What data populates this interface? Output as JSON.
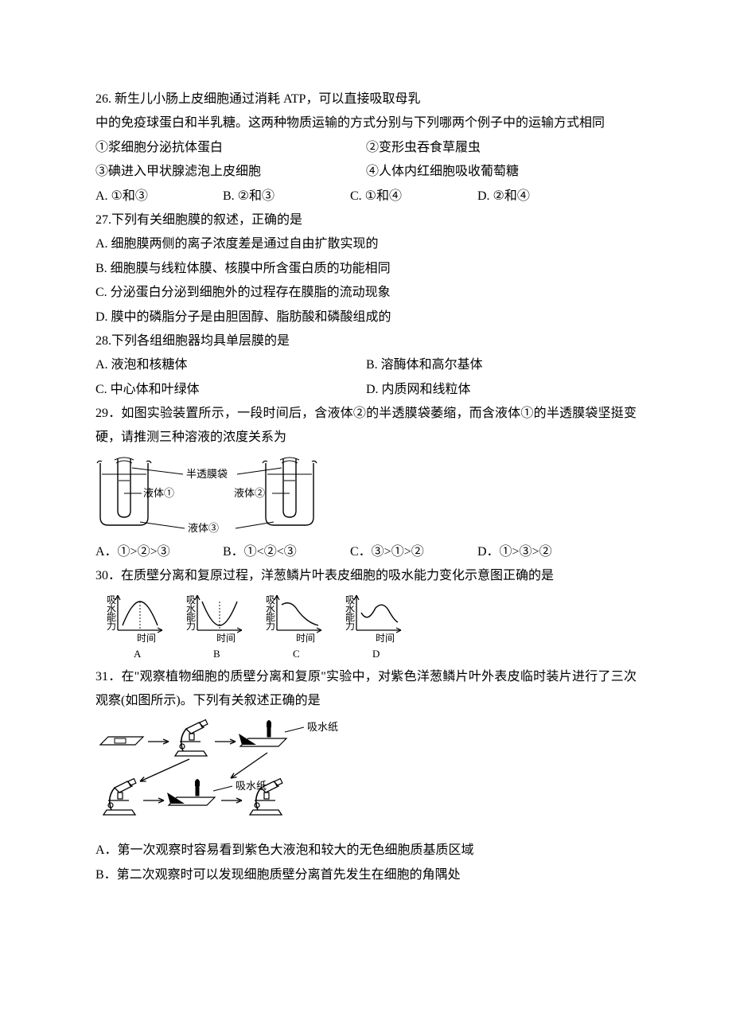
{
  "q26": {
    "line1": "26. 新生儿小肠上皮细胞通过消耗 ATP，可以直接吸取母乳",
    "line2": "中的免疫球蛋白和半乳糖。这两种物质运输的方式分别与下列哪两个例子中的运输方式相同",
    "item1": "①浆细胞分泌抗体蛋白",
    "item2": "②变形虫吞食草履虫",
    "item3": "③碘进入甲状腺滤泡上皮细胞",
    "item4": "④人体内红细胞吸收葡萄糖",
    "optA": "A. ①和③",
    "optB": "B. ②和③",
    "optC": "C. ①和④",
    "optD": "D. ②和④"
  },
  "q27": {
    "stem": "27.下列有关细胞膜的叙述，正确的是",
    "optA": "A. 细胞膜两侧的离子浓度差是通过自由扩散实现的",
    "optB": "B. 细胞膜与线粒体膜、核膜中所含蛋白质的功能相同",
    "optC": "C. 分泌蛋白分泌到细胞外的过程存在膜脂的流动现象",
    "optD": "D. 膜中的磷脂分子是由胆固醇、脂肪酸和磷酸组成的"
  },
  "q28": {
    "stem": "28.下列各组细胞器均具单层膜的是",
    "optA": "A. 液泡和核糖体",
    "optB": "B. 溶酶体和高尔基体",
    "optC": "C. 中心体和叶绿体",
    "optD": "D. 内质网和线粒体"
  },
  "q29": {
    "stem": "29．如图实验装置所示，一段时间后，含液体②的半透膜袋萎缩，而含液体①的半透膜袋坚挺变硬，请推测三种溶液的浓度关系为",
    "optA": "A．①>②>③",
    "optB": "B．①<②<③",
    "optC": "C．③>①>②",
    "optD": "D．①>③>②",
    "fig": {
      "label_bag": "半透膜袋",
      "label_liq1": "液体①",
      "label_liq2": "液体②",
      "label_liq3": "液体③",
      "stroke": "#000000",
      "bg": "#ffffff",
      "font_size": 13
    }
  },
  "q30": {
    "stem": "30．在质壁分离和复原过程，洋葱鳞片叶表皮细胞的吸水能力变化示意图正确的是",
    "fig": {
      "ylabel": "吸水能力",
      "xlabel": "时间",
      "panels": [
        "A",
        "B",
        "C",
        "D"
      ],
      "stroke": "#000000",
      "font_size": 12
    }
  },
  "q31": {
    "stem": "31．在\"观察植物细胞的质壁分离和复原\"实验中，对紫色洋葱鳞片叶外表皮临时装片进行了三次观察(如图所示)。下列有关叙述正确的是",
    "optA": "A．第一次观察时容易看到紫色大液泡和较大的无色细胞质基质区域",
    "optB": "B．第二次观察时可以发现细胞质壁分离首先发生在细胞的角隅处",
    "fig": {
      "label_paper": "吸水纸",
      "stroke": "#000000",
      "font_size": 13
    }
  }
}
